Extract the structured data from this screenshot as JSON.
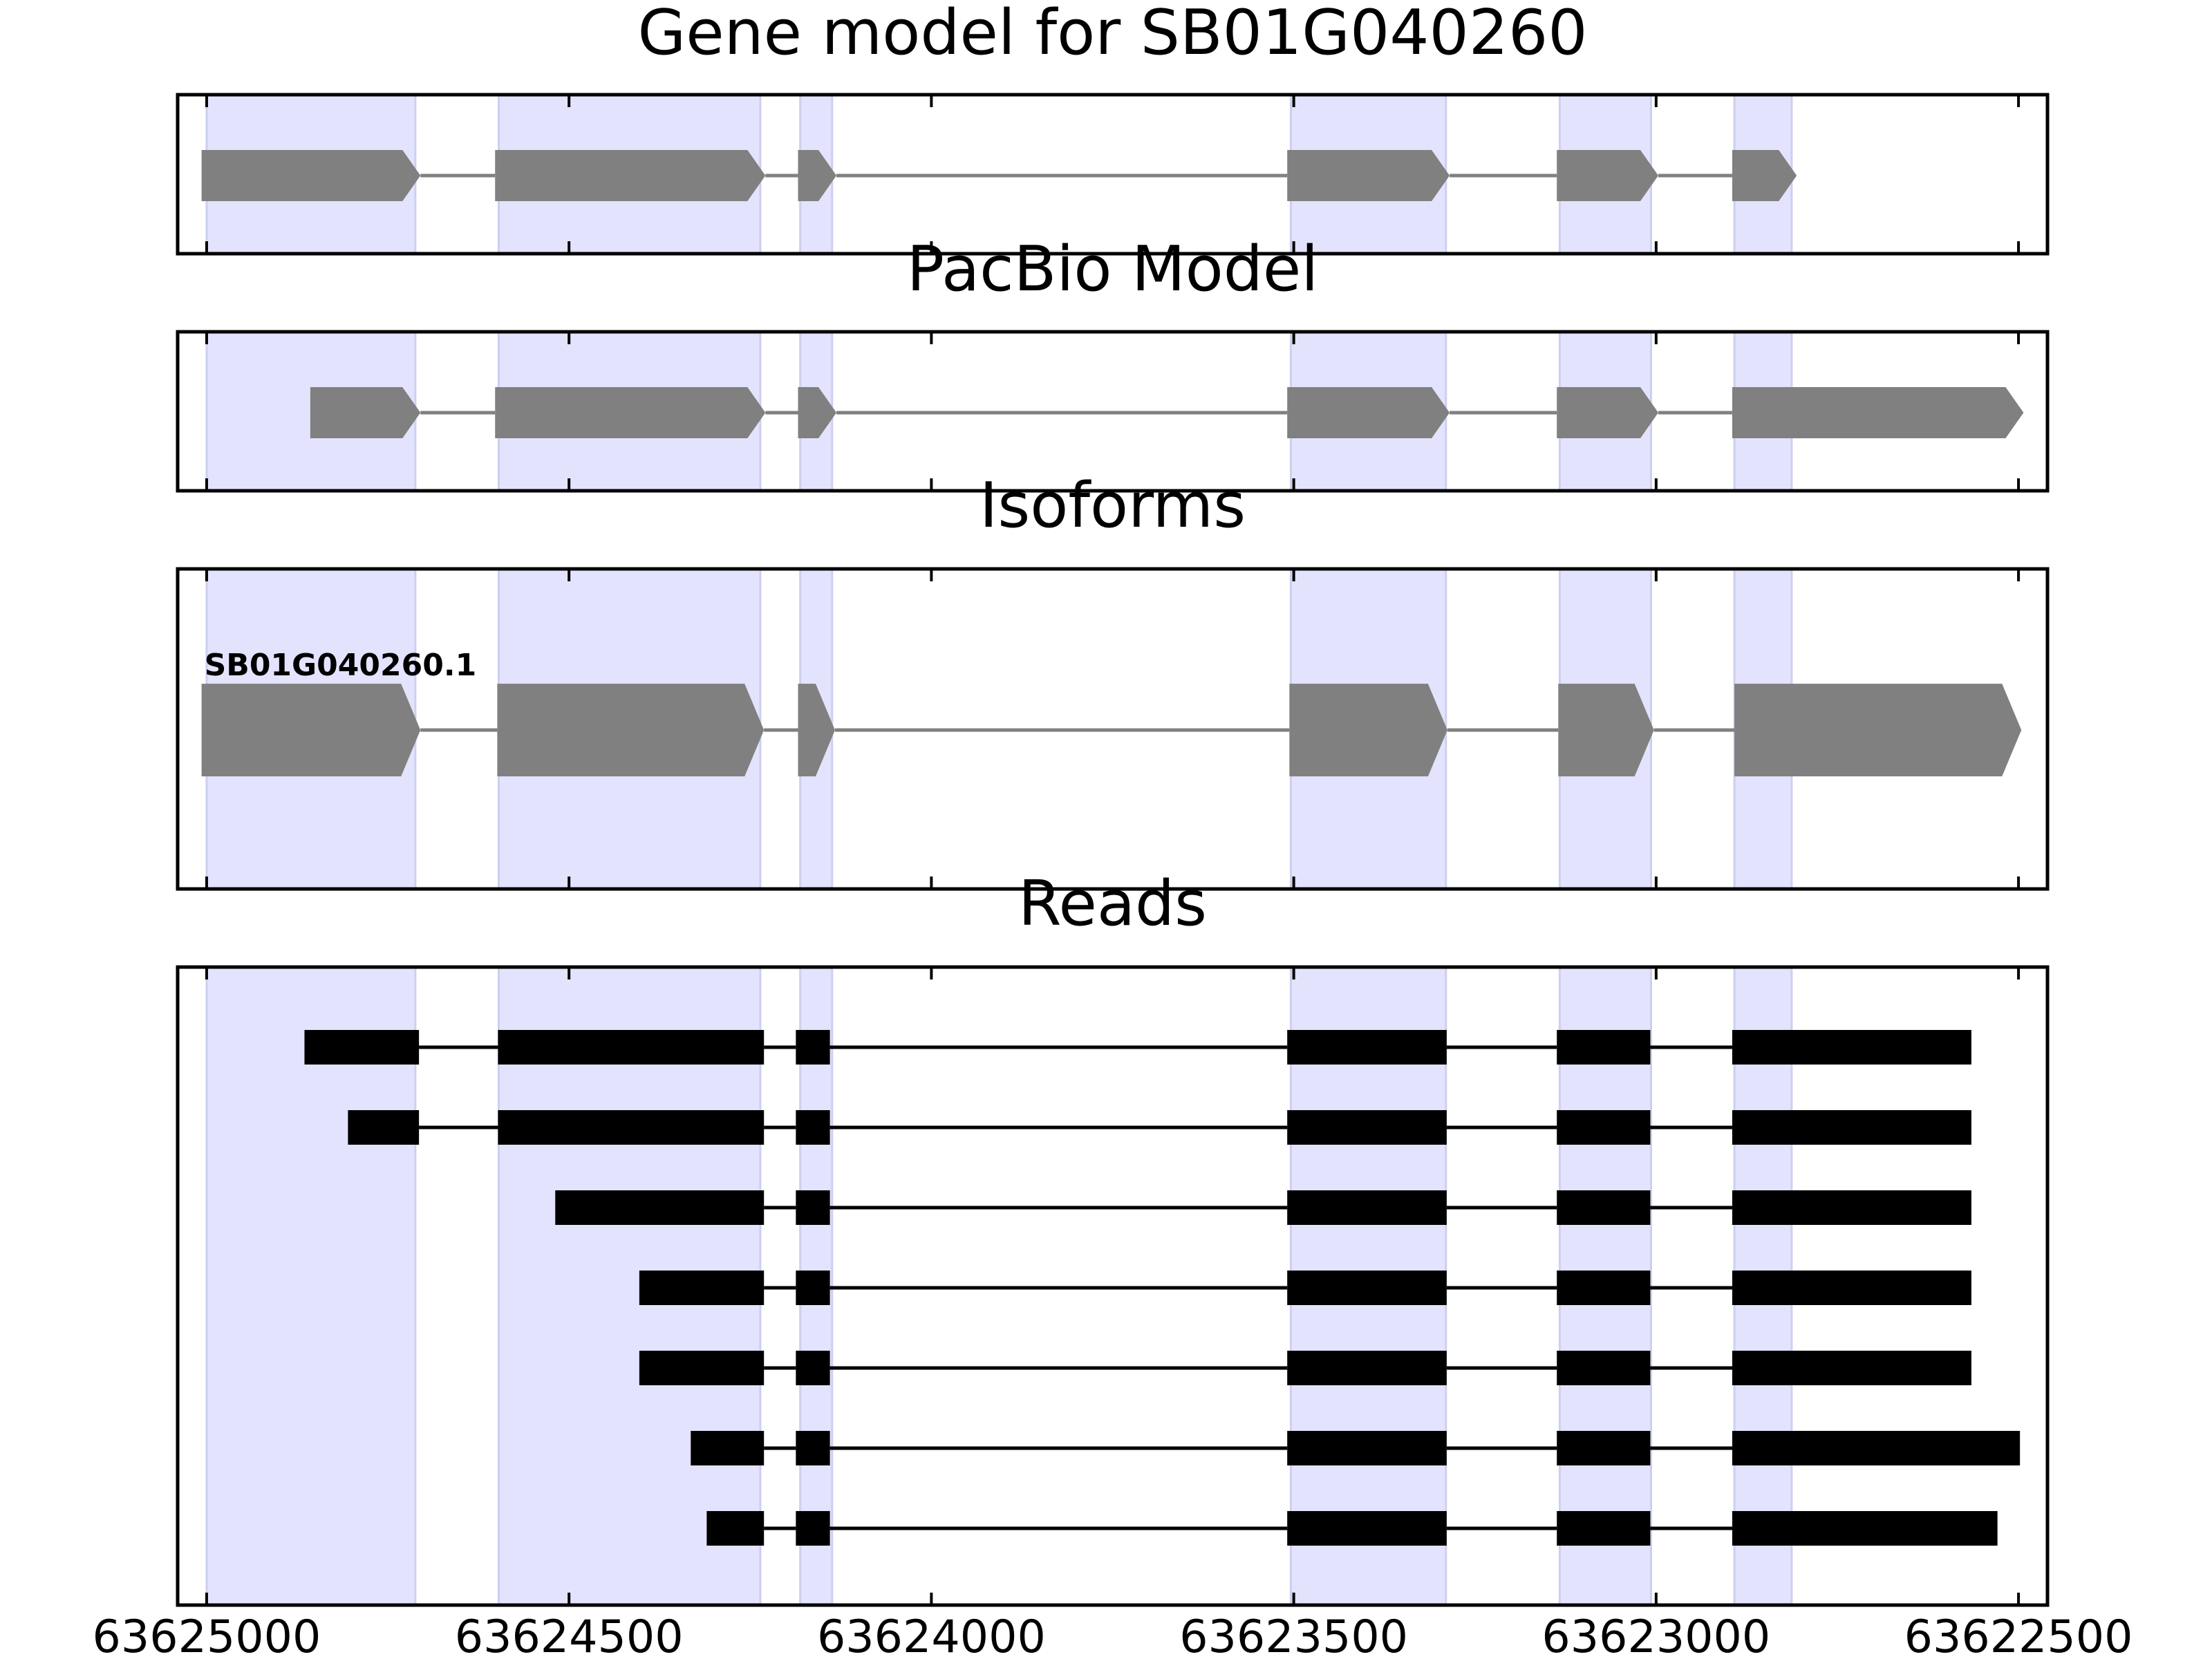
{
  "chart_data": {
    "type": "gene-structure",
    "title": "Gene model for SB01G040260",
    "xlim": [
      63625040,
      63622460
    ],
    "x_ticks": [
      63625000,
      63624500,
      63624000,
      63623500,
      63623000,
      63622500
    ],
    "x_tick_labels": [
      "63625000",
      "63624500",
      "63624000",
      "63623500",
      "63623000",
      "63622500"
    ],
    "shaded_regions": [
      {
        "start": 63625000,
        "end": 63624712
      },
      {
        "start": 63624597,
        "end": 63624236
      },
      {
        "start": 63624181,
        "end": 63624137
      },
      {
        "start": 63623504,
        "end": 63623290
      },
      {
        "start": 63623133,
        "end": 63623007
      },
      {
        "start": 63622892,
        "end": 63622813
      }
    ],
    "panels": [
      {
        "title": "Gene model for SB01G040260",
        "style": "arrow",
        "tracks": [
          {
            "label": "",
            "exons": [
              [
                63625007,
                63624705
              ],
              [
                63624602,
                63624229
              ],
              [
                63624184,
                63624131
              ],
              [
                63623509,
                63623285
              ],
              [
                63623137,
                63622997
              ],
              [
                63622895,
                63622806
              ]
            ]
          }
        ]
      },
      {
        "title": "PacBio Model",
        "style": "arrow",
        "tracks": [
          {
            "label": "",
            "exons": [
              [
                63624857,
                63624705
              ],
              [
                63624602,
                63624229
              ],
              [
                63624184,
                63624131
              ],
              [
                63623509,
                63623285
              ],
              [
                63623137,
                63622997
              ],
              [
                63622895,
                63622493
              ]
            ]
          }
        ]
      },
      {
        "title": "Isoforms",
        "style": "arrow",
        "tracks": [
          {
            "label": "SB01G040260.1",
            "exons": [
              [
                63625007,
                63624705
              ],
              [
                63624599,
                63624231
              ],
              [
                63624184,
                63624133
              ],
              [
                63623506,
                63623288
              ],
              [
                63623135,
                63623003
              ],
              [
                63622892,
                63622496
              ]
            ]
          }
        ]
      },
      {
        "title": "Reads",
        "style": "bar",
        "tracks": [
          {
            "label": "",
            "exons": [
              [
                63624865,
                63624707
              ],
              [
                63624598,
                63624231
              ],
              [
                63624187,
                63624140
              ],
              [
                63623509,
                63623289
              ],
              [
                63623137,
                63623008
              ],
              [
                63622895,
                63622565
              ]
            ]
          },
          {
            "label": "",
            "exons": [
              [
                63624805,
                63624707
              ],
              [
                63624598,
                63624231
              ],
              [
                63624187,
                63624140
              ],
              [
                63623509,
                63623289
              ],
              [
                63623137,
                63623008
              ],
              [
                63622895,
                63622565
              ]
            ]
          },
          {
            "label": "",
            "exons": [
              [
                63624519,
                63624231
              ],
              [
                63624187,
                63624140
              ],
              [
                63623509,
                63623289
              ],
              [
                63623137,
                63623008
              ],
              [
                63622895,
                63622565
              ]
            ]
          },
          {
            "label": "",
            "exons": [
              [
                63624403,
                63624231
              ],
              [
                63624187,
                63624140
              ],
              [
                63623509,
                63623289
              ],
              [
                63623137,
                63623008
              ],
              [
                63622895,
                63622565
              ]
            ]
          },
          {
            "label": "",
            "exons": [
              [
                63624403,
                63624231
              ],
              [
                63624187,
                63624140
              ],
              [
                63623509,
                63623289
              ],
              [
                63623137,
                63623008
              ],
              [
                63622895,
                63622565
              ]
            ]
          },
          {
            "label": "",
            "exons": [
              [
                63624332,
                63624231
              ],
              [
                63624187,
                63624140
              ],
              [
                63623509,
                63623289
              ],
              [
                63623137,
                63623008
              ],
              [
                63622895,
                63622498
              ]
            ]
          },
          {
            "label": "",
            "exons": [
              [
                63624310,
                63624231
              ],
              [
                63624187,
                63624140
              ],
              [
                63623509,
                63623289
              ],
              [
                63623137,
                63623008
              ],
              [
                63622895,
                63622529
              ]
            ]
          }
        ]
      }
    ],
    "colors": {
      "shade": "#e3e3fd",
      "shade_edge": "#ccd0ee",
      "model_exon": "#808080",
      "model_intron": "#808080",
      "read_exon": "#000000",
      "read_intron": "#000000",
      "frame": "#000000"
    }
  }
}
